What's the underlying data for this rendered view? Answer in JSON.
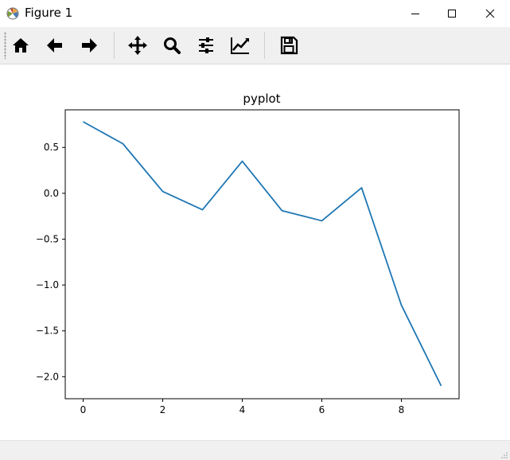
{
  "window": {
    "title": "Figure 1"
  },
  "toolbar": {
    "items": [
      {
        "icon": "home-icon"
      },
      {
        "icon": "back-arrow-icon"
      },
      {
        "icon": "forward-arrow-icon"
      },
      {
        "icon": "pan-icon"
      },
      {
        "icon": "zoom-icon"
      },
      {
        "icon": "configure-subplots-icon"
      },
      {
        "icon": "edit-axis-icon"
      },
      {
        "icon": "save-icon"
      }
    ]
  },
  "colors": {
    "line": "#1f77b4"
  },
  "chart_data": {
    "type": "line",
    "title": "pyplot",
    "xlabel": "",
    "ylabel": "",
    "x": [
      0,
      1,
      2,
      3,
      4,
      5,
      6,
      7,
      8,
      9
    ],
    "series": [
      {
        "values": [
          0.78,
          0.54,
          0.02,
          -0.18,
          0.35,
          -0.19,
          -0.3,
          0.06,
          -1.22,
          -2.1
        ]
      }
    ],
    "xlim": [
      -0.45,
      9.45
    ],
    "ylim": [
      -2.24,
      0.91
    ],
    "xticks": [
      "0",
      "2",
      "4",
      "6",
      "8"
    ],
    "xtick_values": [
      0,
      2,
      4,
      6,
      8
    ],
    "yticks": [
      "0.5",
      "0.0",
      "−0.5",
      "−1.0",
      "−1.5",
      "−2.0"
    ],
    "ytick_values": [
      0.5,
      0.0,
      -0.5,
      -1.0,
      -1.5,
      -2.0
    ],
    "grid": false
  }
}
